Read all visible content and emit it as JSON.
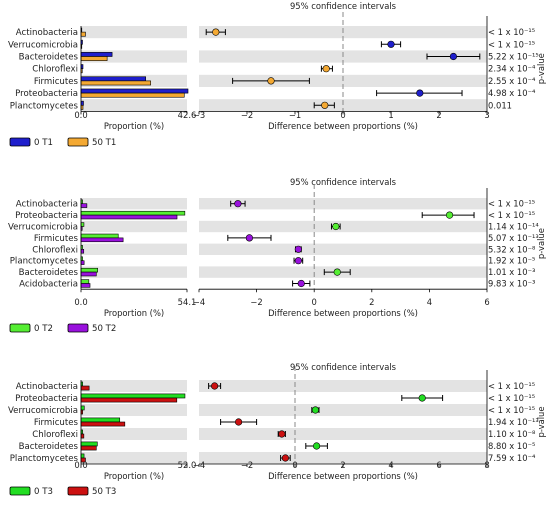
{
  "figure": {
    "ci_title": "95% confidence intervals",
    "prop_xlabel": "Proportion (%)",
    "diff_xlabel": "Difference between proportions (%)",
    "pvalue_label": "p-value"
  },
  "chart_data": [
    {
      "type": "extended-error-bar",
      "title": "95% confidence intervals",
      "categories": [
        "Actinobacteria",
        "Verrucomicrobia",
        "Bacteroidetes",
        "Chloroflexi",
        "Firmicutes",
        "Proteobacteria",
        "Planctomycetes"
      ],
      "proportion_xlabel": "Proportion (%)",
      "proportion_xlim": [
        0,
        42.6
      ],
      "proportion_ticks": [
        "0.0",
        "42.6"
      ],
      "series": [
        {
          "name": "0 T1",
          "color": "#1f1fcc",
          "values": [
            0.3,
            0.6,
            12.5,
            0.8,
            26.0,
            43.0,
            1.0
          ]
        },
        {
          "name": "50 T1",
          "color": "#f4a933",
          "values": [
            1.8,
            0.3,
            10.5,
            0.5,
            28.0,
            41.5,
            0.8
          ]
        }
      ],
      "difference_xlabel": "Difference between proportions (%)",
      "difference_xlim": [
        -3,
        3
      ],
      "difference_ticks": [
        "−3",
        "−2",
        "−1",
        "0",
        "1",
        "2",
        "3"
      ],
      "difference": [
        {
          "mean": -2.65,
          "low": -2.85,
          "high": -2.45,
          "color": "#f4a933"
        },
        {
          "mean": 1.0,
          "low": 0.8,
          "high": 1.2,
          "color": "#1f1fcc"
        },
        {
          "mean": 2.3,
          "low": 1.75,
          "high": 2.85,
          "color": "#1f1fcc"
        },
        {
          "mean": -0.35,
          "low": -0.45,
          "high": -0.22,
          "color": "#f4a933"
        },
        {
          "mean": -1.5,
          "low": -2.3,
          "high": -0.7,
          "color": "#f4a933"
        },
        {
          "mean": 1.6,
          "low": 0.7,
          "high": 2.48,
          "color": "#1f1fcc"
        },
        {
          "mean": -0.38,
          "low": -0.6,
          "high": -0.18,
          "color": "#f4a933"
        }
      ],
      "pvalues": [
        "< 1 x 10⁻¹⁵",
        "< 1 x 10⁻¹⁵",
        "5.22 x 10⁻¹⁵",
        "2.34 x 10⁻⁴",
        "2.55 x 10⁻⁴",
        "4.98 x 10⁻⁴",
        "0.011"
      ]
    },
    {
      "type": "extended-error-bar",
      "title": "95% confidence intervals",
      "categories": [
        "Actinobacteria",
        "Proteobacteria",
        "Verrucomicrobia",
        "Firmicutes",
        "Chloroflexi",
        "Planctomycetes",
        "Bacteroidetes",
        "Acidobacteria"
      ],
      "proportion_xlabel": "Proportion (%)",
      "proportion_xlim": [
        0,
        54.1
      ],
      "proportion_ticks": [
        "0.0",
        "54.1"
      ],
      "series": [
        {
          "name": "0 T2",
          "color": "#55ee33",
          "values": [
            0.8,
            53.0,
            1.5,
            19.0,
            0.8,
            0.8,
            8.5,
            4.0
          ]
        },
        {
          "name": "50 T2",
          "color": "#9911dd",
          "values": [
            3.0,
            49.0,
            0.6,
            21.5,
            1.4,
            1.6,
            7.8,
            4.6
          ]
        }
      ],
      "difference_xlabel": "Difference between proportions (%)",
      "difference_xlim": [
        -4,
        6
      ],
      "difference_ticks": [
        "−4",
        "−2",
        "0",
        "2",
        "4",
        "6"
      ],
      "difference": [
        {
          "mean": -2.65,
          "low": -2.9,
          "high": -2.4,
          "color": "#9911dd"
        },
        {
          "mean": 4.7,
          "low": 3.75,
          "high": 5.55,
          "color": "#55ee33"
        },
        {
          "mean": 0.75,
          "low": 0.6,
          "high": 0.9,
          "color": "#55ee33"
        },
        {
          "mean": -2.25,
          "low": -3.0,
          "high": -1.5,
          "color": "#9911dd"
        },
        {
          "mean": -0.55,
          "low": -0.65,
          "high": -0.45,
          "color": "#9911dd"
        },
        {
          "mean": -0.55,
          "low": -0.7,
          "high": -0.4,
          "color": "#9911dd"
        },
        {
          "mean": 0.8,
          "low": 0.35,
          "high": 1.25,
          "color": "#55ee33"
        },
        {
          "mean": -0.45,
          "low": -0.75,
          "high": -0.15,
          "color": "#9911dd"
        }
      ],
      "pvalues": [
        "< 1 x 10⁻¹⁵",
        "< 1 x 10⁻¹⁵",
        "1.14 x 10⁻¹⁴",
        "5.07 x 10⁻¹³",
        "5.32 x 10⁻⁸",
        "1.92 x 10⁻⁵",
        "1.01 x 10⁻³",
        "9.83 x 10⁻³"
      ]
    },
    {
      "type": "extended-error-bar",
      "title": "95% confidence intervals",
      "categories": [
        "Actinobacteria",
        "Proteobacteria",
        "Verrucomicrobia",
        "Firmicutes",
        "Chloroflexi",
        "Bacteroidetes",
        "Planctomycetes"
      ],
      "proportion_xlabel": "Proportion (%)",
      "proportion_xlim": [
        0,
        52.0
      ],
      "proportion_ticks": [
        "0.0",
        "52.0"
      ],
      "series": [
        {
          "name": "0 T3",
          "color": "#22dd22",
          "values": [
            0.8,
            51.0,
            1.6,
            19.0,
            0.8,
            8.0,
            1.5
          ]
        },
        {
          "name": "50 T3",
          "color": "#cc1111",
          "values": [
            4.0,
            47.0,
            0.8,
            21.5,
            1.4,
            7.5,
            2.2
          ]
        }
      ],
      "difference_xlabel": "Difference between proportions (%)",
      "difference_xlim": [
        -4,
        8
      ],
      "difference_ticks": [
        "−4",
        "−2",
        "0",
        "2",
        "4",
        "6",
        "8"
      ],
      "difference": [
        {
          "mean": -3.35,
          "low": -3.6,
          "high": -3.1,
          "color": "#cc1111"
        },
        {
          "mean": 5.3,
          "low": 4.45,
          "high": 6.15,
          "color": "#22dd22"
        },
        {
          "mean": 0.85,
          "low": 0.7,
          "high": 1.0,
          "color": "#22dd22"
        },
        {
          "mean": -2.35,
          "low": -3.1,
          "high": -1.6,
          "color": "#cc1111"
        },
        {
          "mean": -0.55,
          "low": -0.7,
          "high": -0.4,
          "color": "#cc1111"
        },
        {
          "mean": 0.9,
          "low": 0.45,
          "high": 1.35,
          "color": "#22dd22"
        },
        {
          "mean": -0.4,
          "low": -0.6,
          "high": -0.2,
          "color": "#cc1111"
        }
      ],
      "pvalues": [
        "< 1 x 10⁻¹⁵",
        "< 1 x 10⁻¹⁵",
        "< 1 x 10⁻¹⁵",
        "1.94 x 10⁻¹³",
        "1.10 x 10⁻⁸",
        "8.80 x 10⁻⁵",
        "7.59 x 10⁻⁴"
      ]
    }
  ]
}
